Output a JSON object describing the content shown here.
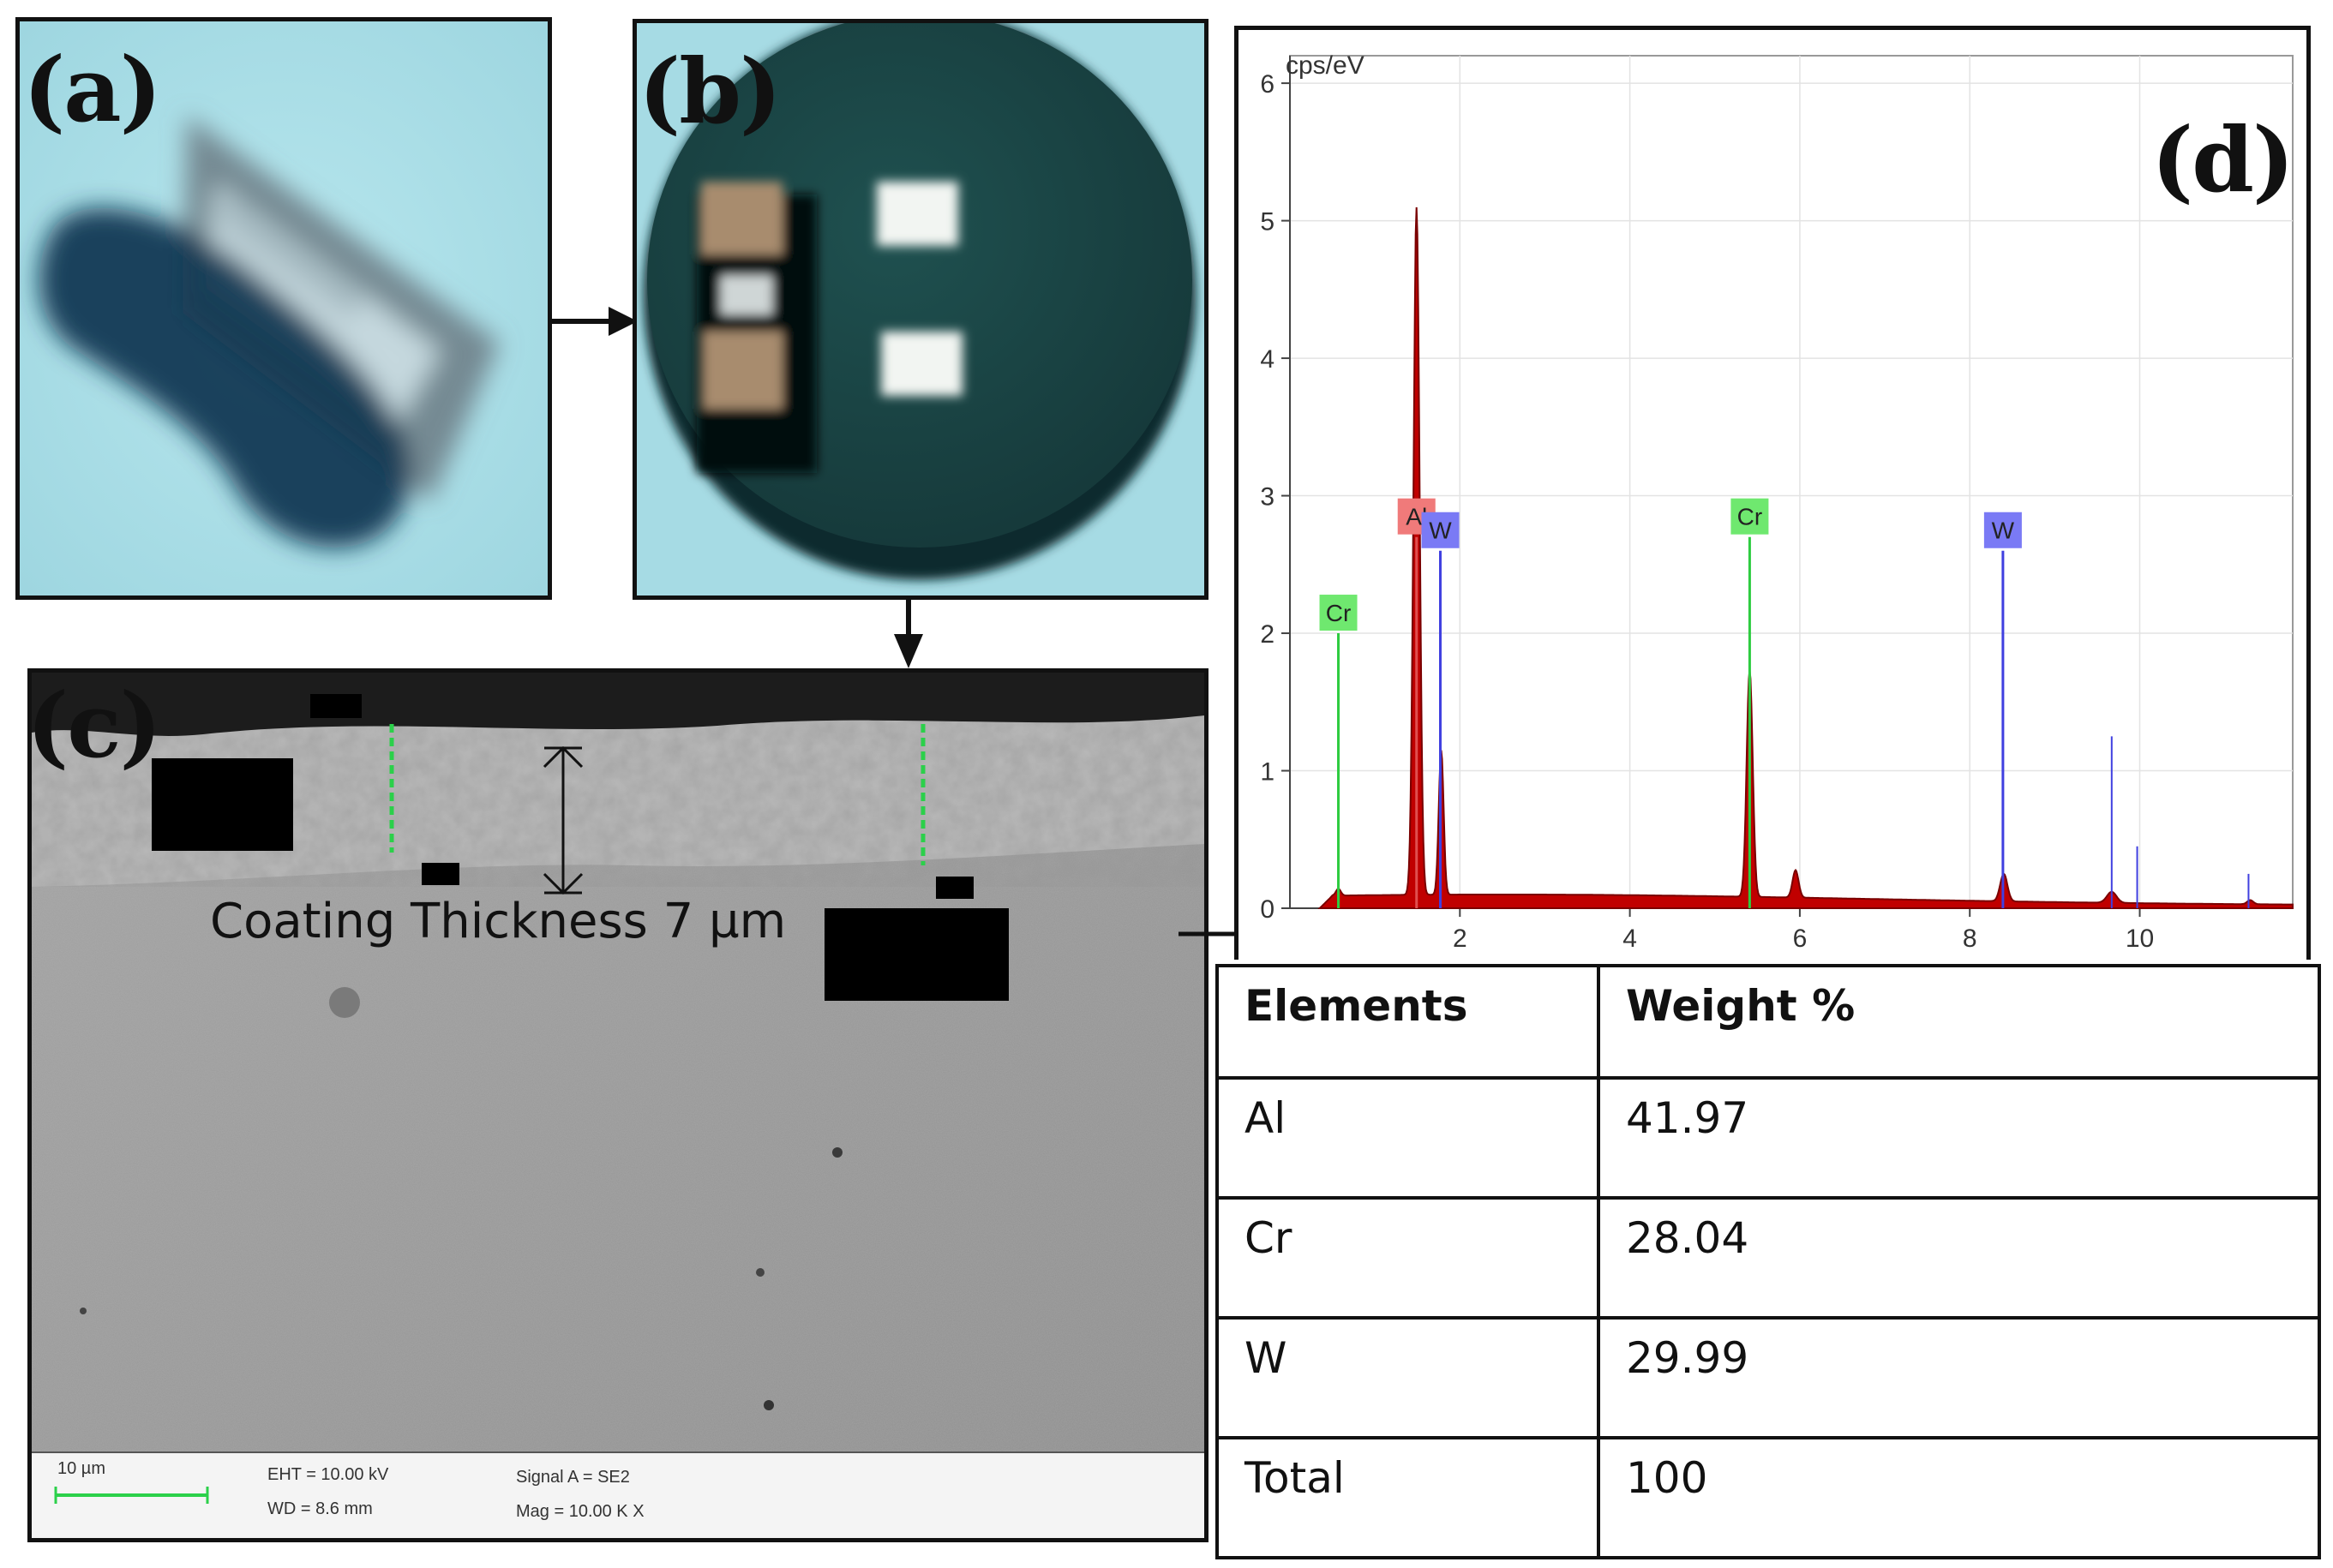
{
  "panels": {
    "a": {
      "label": "(a)"
    },
    "b": {
      "label": "(b)"
    },
    "c": {
      "label": "(c)",
      "annotation": "Coating Thickness 7 µm",
      "scale_bar": "10 µm",
      "eht": "EHT = 10.00 kV",
      "wd": "WD = 8.6 mm",
      "signal": "Signal A = SE2",
      "mag": "Mag = 10.00 K X"
    },
    "d": {
      "label": "(d)"
    }
  },
  "chart_data": {
    "type": "line",
    "title": "",
    "xlabel": "",
    "ylabel": "cps/eV",
    "xlim": [
      0,
      11.8
    ],
    "ylim": [
      0,
      6.2
    ],
    "x_ticks": [
      2,
      4,
      6,
      8,
      10
    ],
    "y_ticks": [
      0,
      1,
      2,
      3,
      4,
      5,
      6
    ],
    "grid": true,
    "series": [
      {
        "color": "#c00000",
        "peaks": [
          {
            "x": 0.57,
            "y": 0.05,
            "w": 0.04
          },
          {
            "x": 1.49,
            "y": 5.0,
            "w": 0.05
          },
          {
            "x": 1.78,
            "y": 1.05,
            "w": 0.04
          },
          {
            "x": 5.41,
            "y": 1.65,
            "w": 0.05
          },
          {
            "x": 5.95,
            "y": 0.2,
            "w": 0.05
          },
          {
            "x": 8.4,
            "y": 0.2,
            "w": 0.06
          },
          {
            "x": 9.67,
            "y": 0.08,
            "w": 0.08
          },
          {
            "x": 11.3,
            "y": 0.03,
            "w": 0.05
          }
        ],
        "baseline": 0.08
      }
    ],
    "element_markers": [
      {
        "name": "Cr",
        "x": 0.57,
        "height": 2.0,
        "color": "#2ecc40"
      },
      {
        "name": "Al",
        "x": 1.49,
        "height": 2.7,
        "color": "#e05050"
      },
      {
        "name": "W",
        "x": 1.77,
        "height": 2.6,
        "color": "#4040e0"
      },
      {
        "name": "Cr",
        "x": 5.41,
        "height": 2.7,
        "color": "#2ecc40"
      },
      {
        "name": "W",
        "x": 8.39,
        "height": 2.6,
        "color": "#4040e0"
      }
    ],
    "extra_lines": [
      {
        "x": 9.67,
        "height": 1.25,
        "color": "#4040e0"
      },
      {
        "x": 9.97,
        "height": 0.45,
        "color": "#4040e0"
      },
      {
        "x": 11.28,
        "height": 0.25,
        "color": "#4040e0"
      }
    ],
    "marker_label_colors": {
      "Cr": "#6fe86f",
      "Al": "#f07a7a",
      "W": "#7a7af5"
    }
  },
  "table": {
    "headers": [
      "Elements",
      "Weight %"
    ],
    "rows": [
      [
        "Al",
        "41.97"
      ],
      [
        "Cr",
        "28.04"
      ],
      [
        "W",
        "29.99"
      ],
      [
        "Total",
        "100"
      ]
    ]
  }
}
